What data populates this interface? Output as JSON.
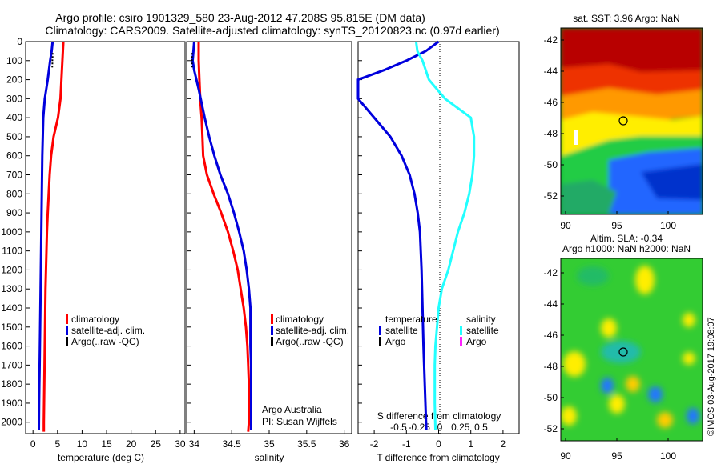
{
  "header": {
    "title_line1": "Argo profile: csiro 1901329_580 23-Aug-2012 47.208S 95.815E (DM data)",
    "title_line2": "Climatology: CARS2009. Satellite-adjusted climatology: synTS_20120823.nc (0.97d earlier)"
  },
  "colors": {
    "climatology": "#ff0000",
    "satellite_adj": "#0000dd",
    "argo": "#000000",
    "sal_satellite": "#22ffff",
    "sal_argo": "#ff22ff",
    "sst_hot": "#c00000",
    "sla_bg": "#33cc33"
  },
  "depth_axis": {
    "ticks": [
      0,
      100,
      200,
      300,
      400,
      500,
      600,
      700,
      800,
      900,
      1000,
      1100,
      1200,
      1300,
      1400,
      1500,
      1600,
      1700,
      1800,
      1900,
      2000
    ]
  },
  "panels": {
    "temperature": {
      "xlabel": "temperature (deg C)",
      "xticks": [
        0,
        5,
        10,
        15,
        20,
        25,
        30
      ],
      "legend": [
        "climatology",
        "satellite-adj. clim.",
        "Argo(..raw -QC)"
      ]
    },
    "salinity": {
      "xlabel": "salinity",
      "xticks": [
        34,
        34.5,
        35,
        35.5,
        36
      ],
      "legend": [
        "climatology",
        "satellite-adj. clim.",
        "Argo(..raw -QC)"
      ],
      "note_line1": "Argo Australia",
      "note_line2": "PI: Susan Wijffels"
    },
    "difference": {
      "xlabel_bottom": "T difference from climatology",
      "xlabel_top": "S difference from climatology",
      "t_ticks": [
        "-2",
        "-1",
        "0",
        "1",
        "2"
      ],
      "s_ticks": [
        "-0.5",
        "-0.25",
        "0",
        "0.25",
        "0.5"
      ],
      "legend_temp_title": "temperature",
      "legend_sal_title": "salinity",
      "legend_satellite": "satellite",
      "legend_argo": "Argo"
    },
    "sst_map": {
      "title": "sat. SST: 3.96 Argo: NaN",
      "yticks": [
        "-42",
        "-44",
        "-46",
        "-48",
        "-50",
        "-52"
      ],
      "xticks": [
        "90",
        "95",
        "100"
      ]
    },
    "sla_map": {
      "title_line1": "Altim. SLA: -0.34",
      "title_line2": "Argo h1000: NaN h2000: NaN",
      "yticks": [
        "-42",
        "-44",
        "-46",
        "-48",
        "-50",
        "-52"
      ],
      "xticks": [
        "90",
        "95",
        "100"
      ]
    }
  },
  "credit": "©IMOS 03-Aug-2017 19:08:07",
  "chart_data": [
    {
      "type": "line",
      "title": "temperature",
      "xlabel": "temperature (deg C)",
      "ylabel": "depth",
      "xlim": [
        -1.5,
        31
      ],
      "ylim": [
        2060,
        0
      ],
      "series": [
        {
          "name": "climatology",
          "x": [
            6.2,
            6.1,
            6.0,
            5.8,
            5.6,
            5.1,
            4.2,
            3.7,
            3.4,
            3.2,
            3.0,
            2.85,
            2.75,
            2.65,
            2.55,
            2.5,
            2.45,
            2.4,
            2.35,
            2.3,
            2.25,
            2.2,
            2.2
          ],
          "y": [
            0,
            50,
            100,
            200,
            300,
            400,
            500,
            600,
            700,
            800,
            900,
            1000,
            1100,
            1200,
            1300,
            1400,
            1500,
            1600,
            1700,
            1800,
            1900,
            2000,
            2050
          ]
        },
        {
          "name": "satellite-adj. clim.",
          "x": [
            4.0,
            3.8,
            3.5,
            3.0,
            2.4,
            2.1,
            2.0,
            1.9,
            1.85,
            1.8,
            1.75,
            1.7,
            1.65,
            1.6,
            1.55,
            1.5,
            1.45,
            1.4,
            1.35,
            1.3,
            1.25,
            1.2
          ],
          "y": [
            0,
            50,
            100,
            200,
            300,
            400,
            500,
            600,
            700,
            800,
            900,
            1000,
            1100,
            1200,
            1300,
            1400,
            1500,
            1600,
            1700,
            1800,
            1900,
            2040
          ]
        },
        {
          "name": "Argo(..raw -QC)",
          "x": [
            4.0,
            4.0,
            3.95,
            3.95,
            3.9
          ],
          "y": [
            60,
            80,
            100,
            120,
            140
          ]
        }
      ]
    },
    {
      "type": "line",
      "title": "salinity",
      "xlabel": "salinity",
      "ylabel": "depth",
      "xlim": [
        33.9,
        36.1
      ],
      "ylim": [
        2060,
        0
      ],
      "series": [
        {
          "name": "climatology",
          "x": [
            34.06,
            34.06,
            34.07,
            34.08,
            34.1,
            34.11,
            34.12,
            34.17,
            34.26,
            34.36,
            34.45,
            34.52,
            34.58,
            34.62,
            34.66,
            34.69,
            34.71,
            34.72,
            34.73,
            34.73,
            34.73,
            34.72
          ],
          "y": [
            0,
            100,
            200,
            300,
            400,
            500,
            600,
            700,
            800,
            900,
            1000,
            1100,
            1200,
            1300,
            1400,
            1500,
            1600,
            1700,
            1800,
            1900,
            2000,
            2050
          ]
        },
        {
          "name": "satellite-adj. clim.",
          "x": [
            34.0,
            33.98,
            34.0,
            34.06,
            34.14,
            34.2,
            34.27,
            34.35,
            34.45,
            34.53,
            34.6,
            34.66,
            34.7,
            34.73,
            34.75,
            34.75,
            34.75,
            34.76,
            34.76,
            34.76,
            34.76,
            34.76
          ],
          "y": [
            0,
            100,
            150,
            250,
            400,
            500,
            600,
            700,
            800,
            900,
            1000,
            1100,
            1200,
            1300,
            1400,
            1500,
            1600,
            1700,
            1800,
            1900,
            2000,
            2040
          ]
        },
        {
          "name": "Argo(..raw -QC)",
          "x": [
            33.97,
            33.97,
            33.97
          ],
          "y": [
            60,
            100,
            140
          ]
        }
      ]
    },
    {
      "type": "line",
      "title": "difference from climatology",
      "xlabel": "T difference from climatology",
      "ylabel": "depth",
      "xlim": [
        -2.5,
        2.5
      ],
      "ylim": [
        2060,
        0
      ],
      "series": [
        {
          "name": "temperature satellite",
          "x": [
            0.0,
            -0.4,
            -1.0,
            -1.7,
            -2.5,
            -2.5,
            -2.0,
            -1.5,
            -1.15,
            -0.9,
            -0.75,
            -0.65,
            -0.58,
            -0.53,
            -0.5,
            -0.47,
            -0.45,
            -0.43,
            -0.41,
            -0.39,
            -0.38
          ],
          "y": [
            0,
            50,
            100,
            150,
            200,
            300,
            400,
            500,
            600,
            700,
            800,
            900,
            1000,
            1200,
            1400,
            1600,
            1700,
            1800,
            1900,
            2000,
            2040
          ]
        },
        {
          "name": "salinity satellite",
          "x": [
            -0.7,
            -0.66,
            -0.5,
            -0.3,
            0.2,
            1.0,
            1.1,
            1.1,
            1.05,
            0.95,
            0.8,
            0.6,
            0.45,
            0.3,
            0.1,
            0.0,
            -0.05,
            -0.1,
            -0.12,
            -0.12,
            -0.1
          ],
          "y": [
            0,
            50,
            100,
            200,
            300,
            400,
            500,
            600,
            700,
            800,
            900,
            1000,
            1100,
            1200,
            1300,
            1400,
            1500,
            1600,
            1700,
            1900,
            2040
          ]
        }
      ]
    }
  ]
}
